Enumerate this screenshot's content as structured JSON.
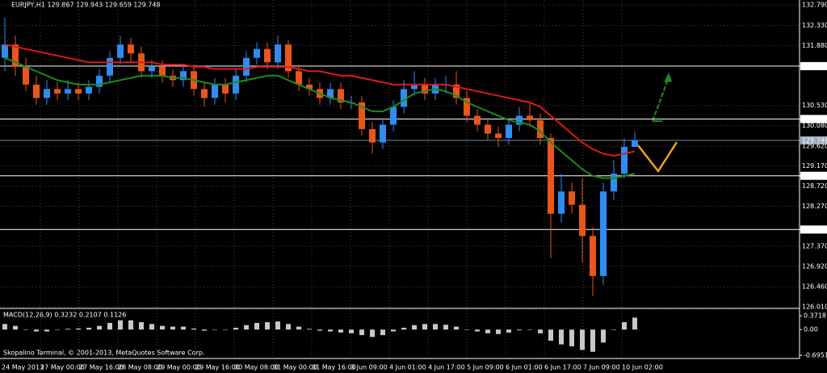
{
  "chart_data": [
    {
      "type": "candlestick",
      "title": "EURJPY,H1 129.867 129.943 129.659 129.748",
      "open": [
        131.6,
        131.9,
        131.4,
        131.0,
        130.7,
        130.9,
        130.8,
        130.9,
        130.8,
        130.95,
        131.2,
        131.6,
        131.9,
        131.7,
        131.3,
        131.4,
        131.2,
        131.1,
        131.3,
        130.9,
        130.7,
        131.0,
        130.8,
        131.2,
        131.6,
        131.8,
        131.5,
        131.9,
        131.3,
        131.0,
        130.9,
        130.7,
        130.9,
        130.6,
        130.6,
        130.0,
        129.7,
        130.1,
        130.5,
        130.9,
        131.0,
        130.8,
        131.0,
        131.0,
        130.7,
        130.3,
        130.1,
        129.9,
        129.8,
        130.1,
        130.3,
        130.2,
        129.8,
        128.1,
        128.6,
        128.3,
        127.6,
        126.7,
        128.6,
        129.0,
        129.6
      ],
      "high": [
        132.5,
        132.1,
        131.6,
        131.2,
        131.1,
        131.05,
        131.1,
        131.05,
        131.1,
        131.35,
        131.75,
        132.1,
        132.05,
        131.85,
        131.55,
        131.55,
        131.35,
        131.45,
        131.45,
        131.05,
        131.15,
        131.15,
        131.35,
        131.75,
        131.95,
        131.95,
        132.1,
        132.0,
        131.45,
        131.15,
        131.05,
        131.05,
        131.05,
        130.75,
        130.75,
        130.15,
        130.25,
        130.65,
        131.1,
        131.3,
        131.15,
        131.15,
        131.2,
        131.3,
        130.85,
        130.45,
        130.25,
        130.05,
        130.25,
        130.5,
        130.6,
        130.35,
        129.9,
        129.0,
        128.8,
        128.9,
        127.8,
        128.8,
        129.3,
        129.8,
        129.943
      ],
      "low": [
        131.3,
        131.2,
        130.85,
        130.55,
        130.55,
        130.65,
        130.65,
        130.65,
        130.65,
        130.8,
        131.05,
        131.45,
        131.5,
        131.15,
        131.15,
        131.05,
        130.95,
        130.95,
        130.75,
        130.5,
        130.55,
        130.6,
        130.65,
        131.05,
        131.45,
        131.35,
        131.35,
        131.15,
        130.85,
        130.75,
        130.55,
        130.55,
        130.45,
        130.45,
        129.85,
        129.45,
        129.55,
        129.95,
        130.35,
        130.75,
        130.65,
        130.65,
        130.8,
        130.55,
        130.15,
        129.95,
        129.75,
        129.6,
        129.65,
        129.95,
        130.05,
        129.65,
        127.1,
        127.9,
        128.1,
        127.0,
        126.25,
        126.5,
        128.4,
        128.9,
        129.659
      ],
      "close": [
        131.9,
        131.4,
        131.0,
        130.7,
        130.9,
        130.8,
        130.9,
        130.8,
        130.95,
        131.2,
        131.6,
        131.9,
        131.7,
        131.3,
        131.4,
        131.2,
        131.1,
        131.3,
        130.9,
        130.7,
        131.0,
        130.8,
        131.2,
        131.6,
        131.8,
        131.5,
        131.9,
        131.3,
        131.0,
        130.9,
        130.7,
        130.9,
        130.6,
        130.6,
        130.0,
        129.7,
        130.1,
        130.5,
        130.9,
        131.0,
        130.8,
        131.0,
        131.0,
        130.7,
        130.3,
        130.1,
        129.9,
        129.8,
        130.1,
        130.3,
        130.2,
        129.8,
        128.1,
        128.6,
        128.3,
        127.6,
        126.7,
        128.6,
        129.0,
        129.6,
        129.748
      ],
      "up_color": "#2f8cf0",
      "down_color": "#e8561c",
      "lines": [
        {
          "color": "#e01818",
          "values": [
            131.9,
            131.85,
            131.8,
            131.75,
            131.7,
            131.65,
            131.6,
            131.55,
            131.5,
            131.5,
            131.5,
            131.5,
            131.5,
            131.5,
            131.5,
            131.45,
            131.45,
            131.45,
            131.4,
            131.4,
            131.35,
            131.35,
            131.35,
            131.35,
            131.4,
            131.4,
            131.4,
            131.4,
            131.35,
            131.3,
            131.3,
            131.25,
            131.2,
            131.2,
            131.15,
            131.1,
            131.05,
            131.0,
            131.0,
            131.0,
            131.0,
            131.0,
            131.0,
            130.95,
            130.9,
            130.85,
            130.8,
            130.75,
            130.7,
            130.65,
            130.6,
            130.5,
            130.3,
            130.1,
            129.9,
            129.7,
            129.55,
            129.45,
            129.4,
            129.45,
            129.5
          ]
        },
        {
          "color": "#1e8a1e",
          "values": [
            131.6,
            131.5,
            131.4,
            131.3,
            131.2,
            131.1,
            131.05,
            131.0,
            131.0,
            131.0,
            131.05,
            131.1,
            131.15,
            131.2,
            131.2,
            131.2,
            131.15,
            131.15,
            131.1,
            131.05,
            131.0,
            131.0,
            131.05,
            131.1,
            131.15,
            131.2,
            131.2,
            131.1,
            131.0,
            130.9,
            130.8,
            130.7,
            130.65,
            130.6,
            130.5,
            130.4,
            130.4,
            130.5,
            130.65,
            130.8,
            130.85,
            130.9,
            130.85,
            130.75,
            130.6,
            130.5,
            130.4,
            130.3,
            130.2,
            130.15,
            130.1,
            129.95,
            129.7,
            129.5,
            129.3,
            129.1,
            128.95,
            128.9,
            128.9,
            128.95,
            129.0
          ]
        }
      ],
      "ylim": [
        126.01,
        132.9
      ],
      "yticks": [
        {
          "value": 132.79,
          "label": "132.790"
        },
        {
          "value": 132.33,
          "label": "132.330"
        },
        {
          "value": 131.88,
          "label": "131.880"
        },
        131.415,
        {
          "value": 130.53,
          "label": "130.530"
        },
        130.228,
        {
          "value": 130.08,
          "label": "130.080"
        },
        129.748,
        {
          "value": 129.62,
          "label": "129.620"
        },
        {
          "value": 129.17,
          "label": "129.170"
        },
        128.952,
        {
          "value": 128.72,
          "label": "128.720"
        },
        {
          "value": 128.27,
          "label": "128.270"
        },
        127.745,
        {
          "value": 127.37,
          "label": "127.370"
        },
        {
          "value": 126.92,
          "label": "126.920"
        },
        {
          "value": 126.46,
          "label": "126.460"
        },
        {
          "value": 126.01,
          "label": "126.010"
        }
      ],
      "hlines": [
        131.415,
        130.228,
        128.952,
        127.745
      ],
      "current_price": 129.748,
      "grid": true,
      "time_labels": [
        "24 May 2013",
        "27 May 00:00",
        "27 May 16:00",
        "28 May 08:00",
        "29 May 00:00",
        "29 May 16:00",
        "30 May 08:00",
        "31 May 00:00",
        "31 May 16:00",
        "3 Jun 09:00",
        "4 Jun 01:00",
        "4 Jun 17:00",
        "5 Jun 09:00",
        "6 Jun 01:00",
        "6 Jun 17:00",
        "7 Jun 09:00",
        "10 Jun 02:00"
      ]
    },
    {
      "type": "bar",
      "title": "MACD(12,26,9) 0.3232 0.2107 0.1126",
      "values": [
        0.15,
        0.1,
        0.0,
        -0.05,
        -0.05,
        0.0,
        0.02,
        0.03,
        0.05,
        0.1,
        0.18,
        0.25,
        0.25,
        0.2,
        0.15,
        0.1,
        0.08,
        0.08,
        0.03,
        -0.03,
        0.0,
        0.0,
        0.05,
        0.12,
        0.18,
        0.2,
        0.22,
        0.15,
        0.08,
        0.02,
        -0.03,
        -0.05,
        -0.08,
        -0.1,
        -0.15,
        -0.2,
        -0.15,
        -0.05,
        0.05,
        0.12,
        0.15,
        0.15,
        0.13,
        0.08,
        0.0,
        -0.05,
        -0.1,
        -0.12,
        -0.08,
        -0.02,
        0.0,
        -0.1,
        -0.3,
        -0.4,
        -0.45,
        -0.55,
        -0.6,
        -0.35,
        0.0,
        0.2,
        0.3232
      ],
      "color": "#c8c8c8",
      "ylim": [
        -0.78,
        0.55
      ],
      "yticks": [
        0.3718,
        {
          "value": 0,
          "label": "0.00"
        },
        -0.6951
      ],
      "footer": "Skopalino Terminal, © 2001-2013, MetaQuotes Software Corp."
    }
  ]
}
